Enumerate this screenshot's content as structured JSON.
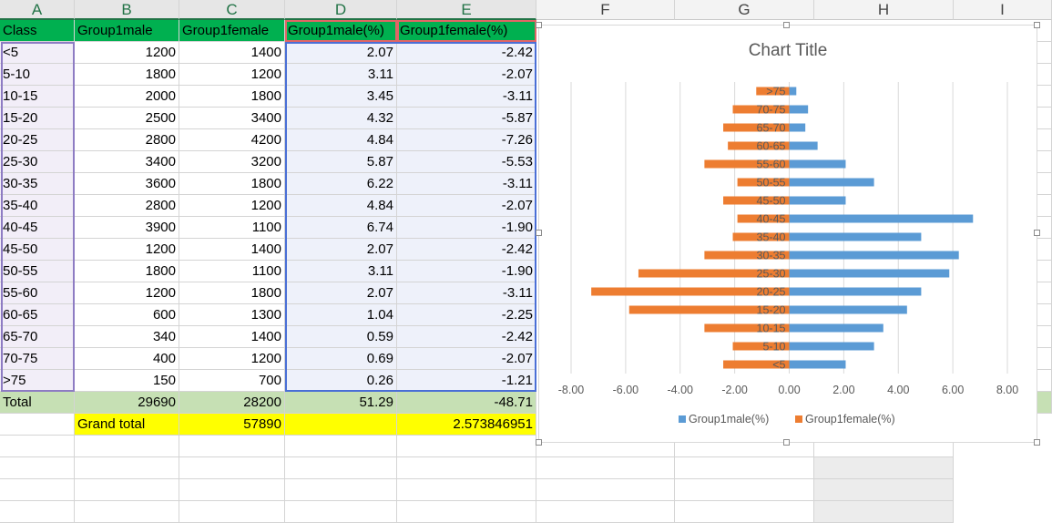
{
  "columns": [
    "A",
    "B",
    "C",
    "D",
    "E",
    "F",
    "G",
    "H",
    "I"
  ],
  "header_row": [
    "Class",
    "Group1male",
    "Group1female",
    "Group1male(%)",
    "Group1female(%)"
  ],
  "rows": [
    [
      "<5",
      "1200",
      "1400",
      "2.07",
      "-2.42"
    ],
    [
      "5-10",
      "1800",
      "1200",
      "3.11",
      "-2.07"
    ],
    [
      "10-15",
      "2000",
      "1800",
      "3.45",
      "-3.11"
    ],
    [
      "15-20",
      "2500",
      "3400",
      "4.32",
      "-5.87"
    ],
    [
      "20-25",
      "2800",
      "4200",
      "4.84",
      "-7.26"
    ],
    [
      "25-30",
      "3400",
      "3200",
      "5.87",
      "-5.53"
    ],
    [
      "30-35",
      "3600",
      "1800",
      "6.22",
      "-3.11"
    ],
    [
      "35-40",
      "2800",
      "1200",
      "4.84",
      "-2.07"
    ],
    [
      "40-45",
      "3900",
      "1100",
      "6.74",
      "-1.90"
    ],
    [
      "45-50",
      "1200",
      "1400",
      "2.07",
      "-2.42"
    ],
    [
      "50-55",
      "1800",
      "1100",
      "3.11",
      "-1.90"
    ],
    [
      "55-60",
      "1200",
      "1800",
      "2.07",
      "-3.11"
    ],
    [
      "60-65",
      "600",
      "1300",
      "1.04",
      "-2.25"
    ],
    [
      "65-70",
      "340",
      "1400",
      "0.59",
      "-2.42"
    ],
    [
      "70-75",
      "400",
      "1200",
      "0.69",
      "-2.07"
    ],
    [
      ">75",
      "150",
      "700",
      "0.26",
      "-1.21"
    ]
  ],
  "total_row": [
    "Total",
    "29690",
    "28200",
    "51.29",
    "-48.71"
  ],
  "grand_total_row": {
    "label": "Grand total",
    "value": "57890",
    "ratio": "2.573846951"
  },
  "colors": {
    "header_green": "#00b050",
    "total_green": "#c6e0b4",
    "grand_total_yellow": "#ffff00",
    "male_blue": "#5b9bd5",
    "female_orange": "#ed7d31"
  },
  "chart_data": {
    "type": "bar",
    "orientation": "horizontal",
    "title": "Chart Title",
    "categories": [
      "<5",
      "5-10",
      "10-15",
      "15-20",
      "20-25",
      "25-30",
      "30-35",
      "35-40",
      "40-45",
      "45-50",
      "50-55",
      "55-60",
      "60-65",
      "65-70",
      "70-75",
      ">75"
    ],
    "series": [
      {
        "name": "Group1male(%)",
        "color": "#5b9bd5",
        "values": [
          2.07,
          3.11,
          3.45,
          4.32,
          4.84,
          5.87,
          6.22,
          4.84,
          6.74,
          2.07,
          3.11,
          2.07,
          1.04,
          0.59,
          0.69,
          0.26
        ]
      },
      {
        "name": "Group1female(%)",
        "color": "#ed7d31",
        "values": [
          -2.42,
          -2.07,
          -3.11,
          -5.87,
          -7.26,
          -5.53,
          -3.11,
          -2.07,
          -1.9,
          -2.42,
          -1.9,
          -3.11,
          -2.25,
          -2.42,
          -2.07,
          -1.21
        ]
      }
    ],
    "xlim": [
      -8,
      8
    ],
    "xticks": [
      "-8.00",
      "-6.00",
      "-4.00",
      "-2.00",
      "0.00",
      "2.00",
      "4.00",
      "6.00",
      "8.00"
    ],
    "grid": true,
    "legend": "bottom"
  }
}
